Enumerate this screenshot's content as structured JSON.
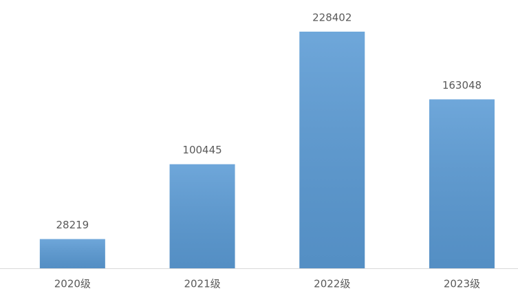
{
  "chart_data": {
    "type": "bar",
    "categories": [
      "2020级",
      "2021级",
      "2022级",
      "2023级"
    ],
    "values": [
      28219,
      100445,
      228402,
      163048
    ],
    "color": "#5b9bd5"
  }
}
